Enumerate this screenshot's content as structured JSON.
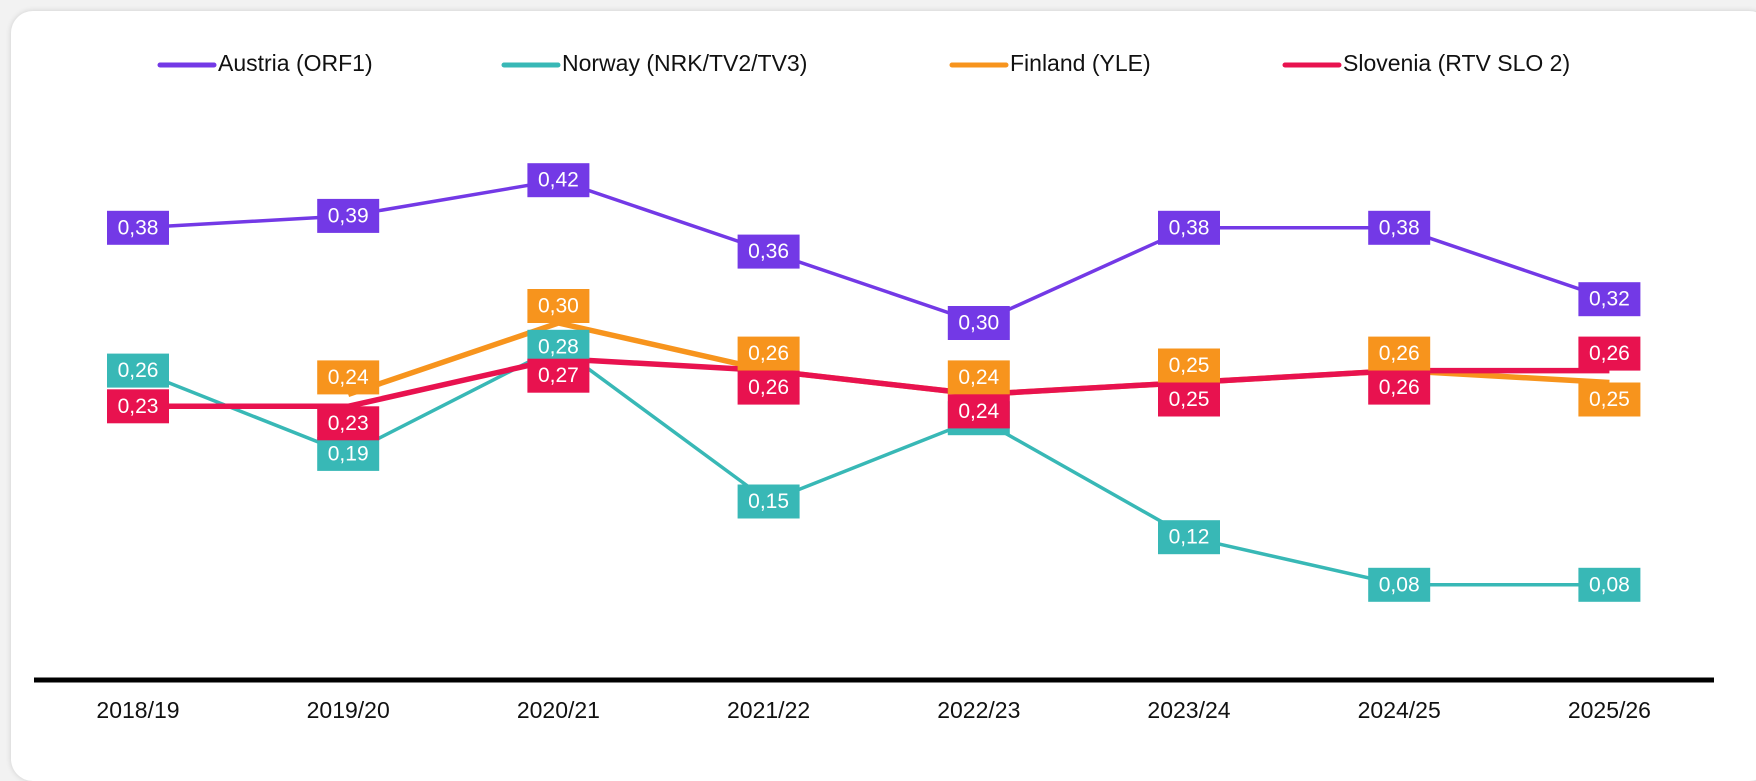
{
  "chart_data": {
    "type": "line",
    "categories": [
      "2018/19",
      "2019/20",
      "2020/21",
      "2021/22",
      "2022/23",
      "2023/24",
      "2024/25",
      "2025/26"
    ],
    "ylim": [
      0,
      0.5
    ],
    "series": [
      {
        "name": "Austria (ORF1)",
        "color": "#7339e6",
        "values": [
          0.38,
          0.39,
          0.42,
          0.36,
          0.3,
          0.38,
          0.38,
          0.32
        ],
        "value_labels": [
          "0,38",
          "0,39",
          "0,42",
          "0,36",
          "0,30",
          "0,38",
          "0,38",
          "0,32"
        ]
      },
      {
        "name": "Norway (NRK/TV2/TV3)",
        "color": "#38b8b6",
        "values": [
          0.26,
          0.19,
          0.28,
          0.15,
          0.22,
          0.12,
          0.08,
          0.08
        ],
        "value_labels": [
          "0,26",
          "0,19",
          "0,28",
          "0,15",
          "0,22",
          "0,12",
          "0,08",
          "0,08"
        ]
      },
      {
        "name": "Finland (YLE)",
        "color": "#f7941d",
        "values": [
          null,
          0.24,
          0.3,
          0.26,
          0.24,
          0.25,
          0.26,
          0.25
        ],
        "value_labels": [
          null,
          "0,24",
          "0,30",
          "0,26",
          "0,24",
          "0,25",
          "0,26",
          "0,25"
        ]
      },
      {
        "name": "Slovenia (RTV SLO 2)",
        "color": "#e8124f",
        "values": [
          0.23,
          0.23,
          0.27,
          0.26,
          0.24,
          0.25,
          0.26,
          0.26
        ],
        "value_labels": [
          "0,23",
          "0,23",
          "0,27",
          "0,26",
          "0,24",
          "0,25",
          "0,26",
          "0,26"
        ]
      }
    ]
  }
}
